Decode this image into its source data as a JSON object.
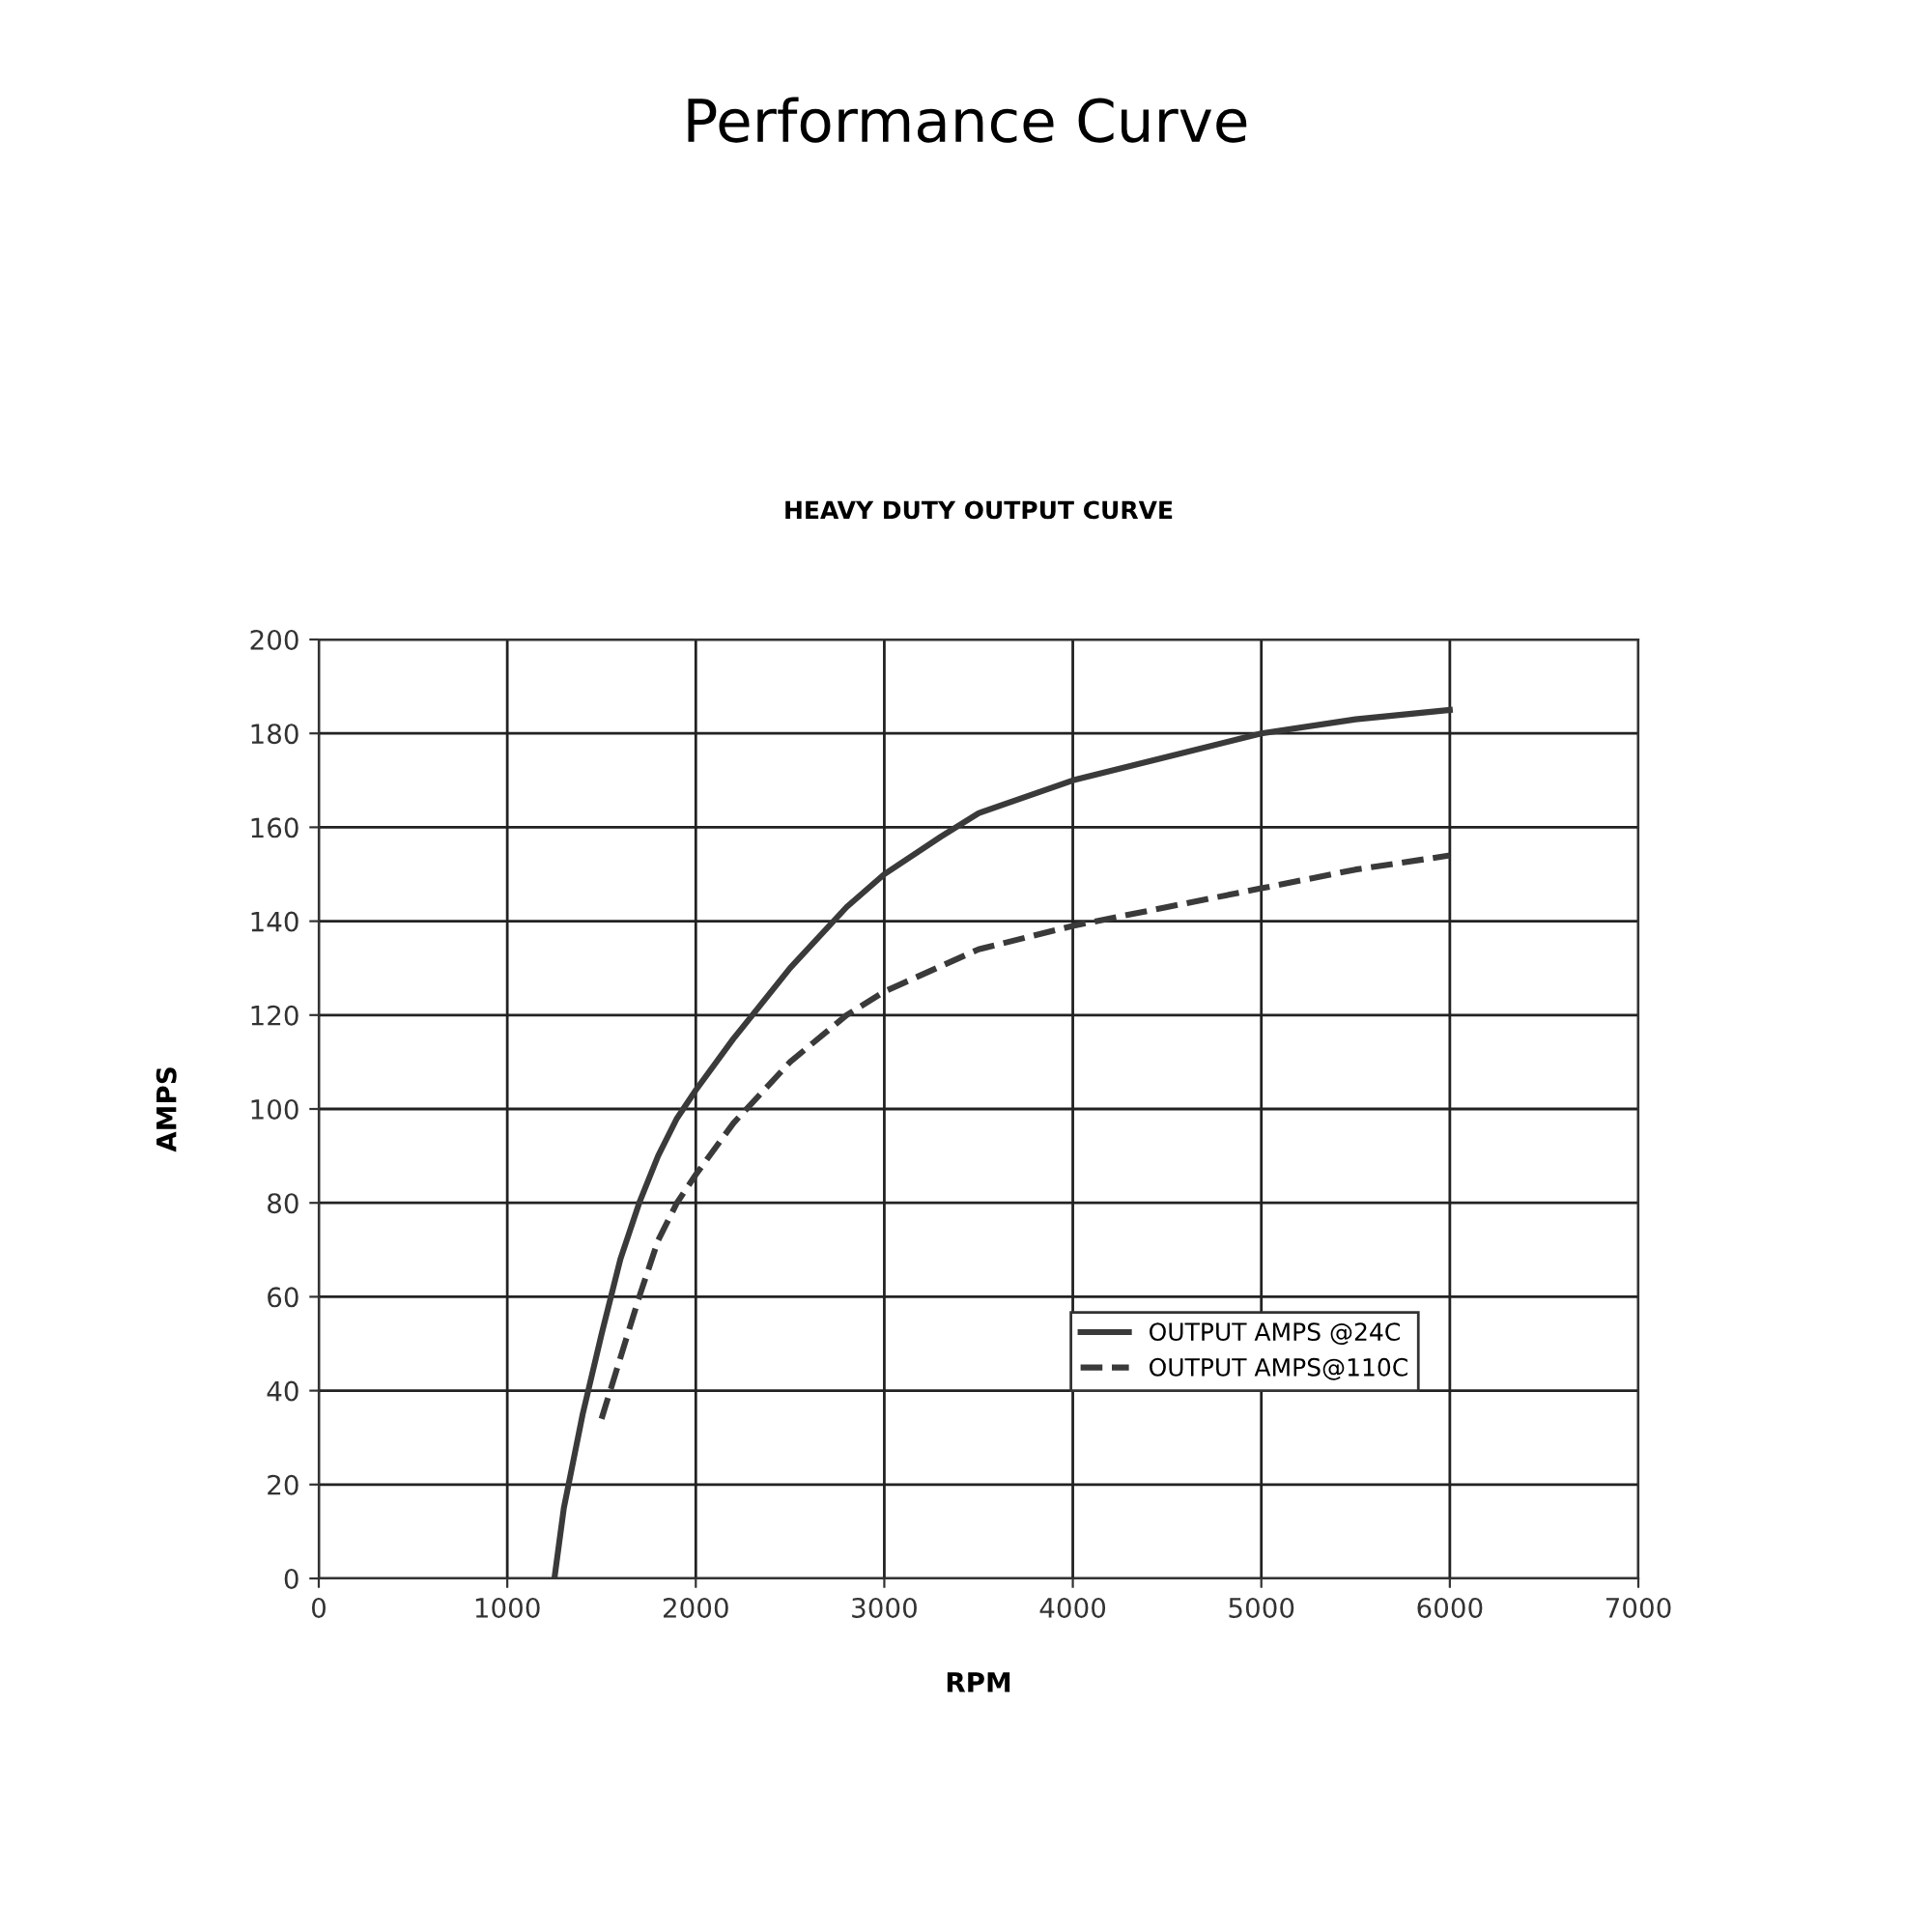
{
  "chart_data": {
    "type": "line",
    "title": "Performance Curve",
    "subtitle": "HEAVY DUTY OUTPUT CURVE",
    "xlabel": "RPM",
    "ylabel": "AMPS",
    "xlim": [
      0,
      7000
    ],
    "xticks": [
      0,
      1000,
      2000,
      3000,
      4000,
      5000,
      6000,
      7000
    ],
    "ylim": [
      0,
      200
    ],
    "yticks": [
      0,
      20,
      40,
      60,
      80,
      100,
      120,
      140,
      160,
      180,
      200
    ],
    "grid": true,
    "legend": "bottom right",
    "series": [
      {
        "name": "OUTPUT AMPS @24C",
        "color": "#3a3a3a",
        "line_style": "solid",
        "x": [
          1250,
          1300,
          1400,
          1500,
          1600,
          1700,
          1800,
          1900,
          2000,
          2200,
          2500,
          2800,
          3000,
          3300,
          3500,
          4000,
          4500,
          5000,
          5500,
          6000
        ],
        "values": [
          0,
          15,
          35,
          52,
          68,
          80,
          90,
          98,
          104,
          115,
          130,
          143,
          150,
          158,
          163,
          170,
          175,
          180,
          183,
          185
        ]
      },
      {
        "name": "OUTPUT AMPS@110C",
        "color": "#3a3a3a",
        "line_style": "dashed",
        "x": [
          1500,
          1600,
          1700,
          1800,
          1900,
          2000,
          2200,
          2500,
          2800,
          3000,
          3500,
          4000,
          4500,
          5000,
          5500,
          6000
        ],
        "values": [
          34,
          47,
          60,
          72,
          80,
          86,
          97,
          110,
          120,
          125,
          134,
          139,
          143,
          147,
          151,
          154
        ]
      }
    ]
  }
}
